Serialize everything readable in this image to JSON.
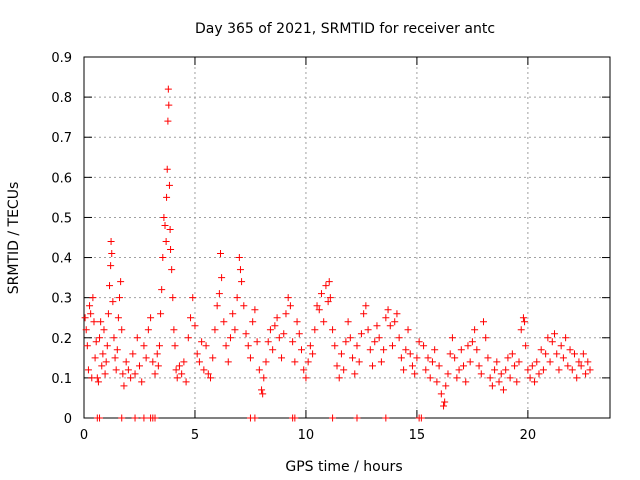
{
  "chart_data": {
    "type": "scatter",
    "title": "Day 365 of 2021, SRMTID for receiver antc",
    "xlabel": "GPS time / hours",
    "ylabel": "SRMTID / TECUs",
    "xlim": [
      0,
      23.7
    ],
    "ylim": [
      0,
      0.9
    ],
    "x_ticks": [
      0,
      5,
      10,
      15,
      20
    ],
    "y_ticks": [
      0,
      0.1,
      0.2,
      0.3,
      0.4,
      0.5,
      0.6,
      0.7,
      0.8,
      0.9
    ],
    "x_tick_labels": [
      "0",
      "5",
      "10",
      "15",
      "20"
    ],
    "y_tick_labels": [
      "0",
      "0.1",
      "0.2",
      "0.3",
      "0.4",
      "0.5",
      "0.6",
      "0.7",
      "0.8",
      "0.9"
    ],
    "grid": true,
    "marker": "plus",
    "color": "#ff0000",
    "points": [
      [
        0.05,
        0.25
      ],
      [
        0.1,
        0.22
      ],
      [
        0.15,
        0.18
      ],
      [
        0.2,
        0.12
      ],
      [
        0.25,
        0.28
      ],
      [
        0.3,
        0.26
      ],
      [
        0.35,
        0.1
      ],
      [
        0.4,
        0.3
      ],
      [
        0.45,
        0.24
      ],
      [
        0.5,
        0.15
      ],
      [
        0.55,
        0.19
      ],
      [
        0.6,
        0.1
      ],
      [
        0.65,
        0.09
      ],
      [
        0.7,
        0.2
      ],
      [
        0.75,
        0.24
      ],
      [
        0.8,
        0.13
      ],
      [
        0.85,
        0.16
      ],
      [
        0.9,
        0.22
      ],
      [
        0.95,
        0.11
      ],
      [
        1.0,
        0.14
      ],
      [
        1.05,
        0.18
      ],
      [
        1.1,
        0.26
      ],
      [
        1.15,
        0.33
      ],
      [
        1.2,
        0.38
      ],
      [
        1.22,
        0.44
      ],
      [
        1.25,
        0.41
      ],
      [
        1.3,
        0.29
      ],
      [
        1.35,
        0.2
      ],
      [
        1.4,
        0.15
      ],
      [
        1.45,
        0.12
      ],
      [
        1.5,
        0.17
      ],
      [
        1.55,
        0.25
      ],
      [
        1.6,
        0.3
      ],
      [
        1.65,
        0.34
      ],
      [
        1.7,
        0.22
      ],
      [
        1.75,
        0.11
      ],
      [
        1.8,
        0.08
      ],
      [
        1.9,
        0.14
      ],
      [
        2.0,
        0.12
      ],
      [
        2.1,
        0.1
      ],
      [
        2.2,
        0.16
      ],
      [
        2.3,
        0.11
      ],
      [
        2.4,
        0.2
      ],
      [
        2.5,
        0.13
      ],
      [
        2.6,
        0.09
      ],
      [
        2.7,
        0.18
      ],
      [
        2.8,
        0.15
      ],
      [
        2.9,
        0.22
      ],
      [
        3.0,
        0.25
      ],
      [
        3.1,
        0.14
      ],
      [
        3.2,
        0.11
      ],
      [
        3.3,
        0.16
      ],
      [
        3.35,
        0.13
      ],
      [
        3.4,
        0.18
      ],
      [
        3.45,
        0.26
      ],
      [
        3.5,
        0.32
      ],
      [
        3.55,
        0.4
      ],
      [
        3.6,
        0.5
      ],
      [
        3.65,
        0.48
      ],
      [
        3.7,
        0.44
      ],
      [
        3.72,
        0.55
      ],
      [
        3.75,
        0.62
      ],
      [
        3.78,
        0.74
      ],
      [
        3.8,
        0.82
      ],
      [
        3.82,
        0.78
      ],
      [
        3.85,
        0.58
      ],
      [
        3.88,
        0.47
      ],
      [
        3.9,
        0.42
      ],
      [
        3.95,
        0.37
      ],
      [
        4.0,
        0.3
      ],
      [
        4.05,
        0.22
      ],
      [
        4.1,
        0.18
      ],
      [
        4.15,
        0.12
      ],
      [
        4.2,
        0.1
      ],
      [
        4.3,
        0.13
      ],
      [
        4.4,
        0.11
      ],
      [
        4.5,
        0.14
      ],
      [
        4.6,
        0.09
      ],
      [
        4.7,
        0.2
      ],
      [
        4.8,
        0.25
      ],
      [
        4.9,
        0.3
      ],
      [
        5.0,
        0.23
      ],
      [
        5.1,
        0.16
      ],
      [
        5.2,
        0.14
      ],
      [
        5.3,
        0.19
      ],
      [
        5.4,
        0.12
      ],
      [
        5.5,
        0.18
      ],
      [
        5.6,
        0.11
      ],
      [
        5.7,
        0.1
      ],
      [
        5.8,
        0.15
      ],
      [
        5.9,
        0.22
      ],
      [
        6.0,
        0.28
      ],
      [
        6.1,
        0.31
      ],
      [
        6.15,
        0.41
      ],
      [
        6.2,
        0.35
      ],
      [
        6.3,
        0.24
      ],
      [
        6.4,
        0.18
      ],
      [
        6.5,
        0.14
      ],
      [
        6.6,
        0.2
      ],
      [
        6.7,
        0.26
      ],
      [
        6.8,
        0.22
      ],
      [
        6.9,
        0.3
      ],
      [
        7.0,
        0.4
      ],
      [
        7.05,
        0.37
      ],
      [
        7.1,
        0.34
      ],
      [
        7.2,
        0.28
      ],
      [
        7.3,
        0.21
      ],
      [
        7.4,
        0.18
      ],
      [
        7.5,
        0.15
      ],
      [
        7.6,
        0.24
      ],
      [
        7.7,
        0.27
      ],
      [
        7.8,
        0.19
      ],
      [
        7.9,
        0.12
      ],
      [
        8.0,
        0.07
      ],
      [
        8.05,
        0.06
      ],
      [
        8.1,
        0.1
      ],
      [
        8.2,
        0.14
      ],
      [
        8.3,
        0.19
      ],
      [
        8.4,
        0.22
      ],
      [
        8.5,
        0.17
      ],
      [
        8.6,
        0.23
      ],
      [
        8.7,
        0.25
      ],
      [
        8.8,
        0.2
      ],
      [
        8.9,
        0.15
      ],
      [
        9.0,
        0.21
      ],
      [
        9.1,
        0.26
      ],
      [
        9.2,
        0.3
      ],
      [
        9.3,
        0.28
      ],
      [
        9.4,
        0.19
      ],
      [
        9.5,
        0.14
      ],
      [
        9.6,
        0.24
      ],
      [
        9.7,
        0.21
      ],
      [
        9.8,
        0.17
      ],
      [
        9.9,
        0.12
      ],
      [
        10.0,
        0.1
      ],
      [
        10.1,
        0.14
      ],
      [
        10.2,
        0.18
      ],
      [
        10.3,
        0.16
      ],
      [
        10.4,
        0.22
      ],
      [
        10.5,
        0.28
      ],
      [
        10.6,
        0.27
      ],
      [
        10.7,
        0.31
      ],
      [
        10.8,
        0.24
      ],
      [
        10.9,
        0.33
      ],
      [
        11.0,
        0.29
      ],
      [
        11.05,
        0.34
      ],
      [
        11.1,
        0.3
      ],
      [
        11.2,
        0.22
      ],
      [
        11.3,
        0.18
      ],
      [
        11.4,
        0.13
      ],
      [
        11.5,
        0.1
      ],
      [
        11.6,
        0.16
      ],
      [
        11.7,
        0.12
      ],
      [
        11.8,
        0.19
      ],
      [
        11.9,
        0.24
      ],
      [
        12.0,
        0.2
      ],
      [
        12.1,
        0.15
      ],
      [
        12.2,
        0.11
      ],
      [
        12.3,
        0.18
      ],
      [
        12.4,
        0.14
      ],
      [
        12.5,
        0.21
      ],
      [
        12.6,
        0.26
      ],
      [
        12.7,
        0.28
      ],
      [
        12.8,
        0.22
      ],
      [
        12.9,
        0.17
      ],
      [
        13.0,
        0.13
      ],
      [
        13.1,
        0.19
      ],
      [
        13.2,
        0.23
      ],
      [
        13.3,
        0.2
      ],
      [
        13.4,
        0.14
      ],
      [
        13.5,
        0.17
      ],
      [
        13.6,
        0.25
      ],
      [
        13.7,
        0.27
      ],
      [
        13.8,
        0.23
      ],
      [
        13.9,
        0.18
      ],
      [
        14.0,
        0.24
      ],
      [
        14.1,
        0.26
      ],
      [
        14.2,
        0.2
      ],
      [
        14.3,
        0.15
      ],
      [
        14.4,
        0.12
      ],
      [
        14.5,
        0.17
      ],
      [
        14.6,
        0.22
      ],
      [
        14.7,
        0.16
      ],
      [
        14.8,
        0.13
      ],
      [
        14.9,
        0.11
      ],
      [
        15.0,
        0.15
      ],
      [
        15.1,
        0.19
      ],
      [
        15.3,
        0.18
      ],
      [
        15.4,
        0.12
      ],
      [
        15.5,
        0.15
      ],
      [
        15.6,
        0.1
      ],
      [
        15.7,
        0.14
      ],
      [
        15.8,
        0.17
      ],
      [
        15.9,
        0.09
      ],
      [
        16.0,
        0.13
      ],
      [
        16.1,
        0.06
      ],
      [
        16.2,
        0.03
      ],
      [
        16.25,
        0.04
      ],
      [
        16.3,
        0.08
      ],
      [
        16.4,
        0.11
      ],
      [
        16.5,
        0.16
      ],
      [
        16.6,
        0.2
      ],
      [
        16.7,
        0.15
      ],
      [
        16.8,
        0.1
      ],
      [
        16.9,
        0.12
      ],
      [
        17.0,
        0.17
      ],
      [
        17.1,
        0.13
      ],
      [
        17.2,
        0.09
      ],
      [
        17.3,
        0.18
      ],
      [
        17.4,
        0.14
      ],
      [
        17.5,
        0.19
      ],
      [
        17.6,
        0.22
      ],
      [
        17.7,
        0.17
      ],
      [
        17.8,
        0.13
      ],
      [
        17.9,
        0.11
      ],
      [
        18.0,
        0.24
      ],
      [
        18.1,
        0.2
      ],
      [
        18.2,
        0.15
      ],
      [
        18.3,
        0.1
      ],
      [
        18.4,
        0.08
      ],
      [
        18.5,
        0.12
      ],
      [
        18.6,
        0.14
      ],
      [
        18.7,
        0.09
      ],
      [
        18.8,
        0.11
      ],
      [
        18.9,
        0.07
      ],
      [
        19.0,
        0.12
      ],
      [
        19.1,
        0.15
      ],
      [
        19.2,
        0.1
      ],
      [
        19.3,
        0.16
      ],
      [
        19.4,
        0.13
      ],
      [
        19.5,
        0.09
      ],
      [
        19.6,
        0.14
      ],
      [
        19.7,
        0.22
      ],
      [
        19.8,
        0.25
      ],
      [
        19.85,
        0.24
      ],
      [
        19.9,
        0.18
      ],
      [
        20.0,
        0.12
      ],
      [
        20.1,
        0.1
      ],
      [
        20.2,
        0.13
      ],
      [
        20.3,
        0.09
      ],
      [
        20.4,
        0.14
      ],
      [
        20.5,
        0.11
      ],
      [
        20.6,
        0.17
      ],
      [
        20.7,
        0.12
      ],
      [
        20.8,
        0.16
      ],
      [
        20.9,
        0.2
      ],
      [
        21.0,
        0.14
      ],
      [
        21.1,
        0.19
      ],
      [
        21.2,
        0.21
      ],
      [
        21.3,
        0.16
      ],
      [
        21.4,
        0.12
      ],
      [
        21.5,
        0.18
      ],
      [
        21.6,
        0.15
      ],
      [
        21.7,
        0.2
      ],
      [
        21.8,
        0.13
      ],
      [
        21.9,
        0.17
      ],
      [
        22.0,
        0.12
      ],
      [
        22.1,
        0.16
      ],
      [
        22.2,
        0.1
      ],
      [
        22.3,
        0.14
      ],
      [
        22.4,
        0.13
      ],
      [
        22.5,
        0.16
      ],
      [
        22.6,
        0.11
      ],
      [
        22.7,
        0.14
      ],
      [
        22.8,
        0.12
      ]
    ],
    "zero_markers_x": [
      0.6,
      0.7,
      1.7,
      2.3,
      2.7,
      3.0,
      3.1,
      3.2,
      7.5,
      7.7,
      9.4,
      9.5,
      11.2,
      12.3,
      13.6,
      15.1,
      15.2
    ]
  }
}
